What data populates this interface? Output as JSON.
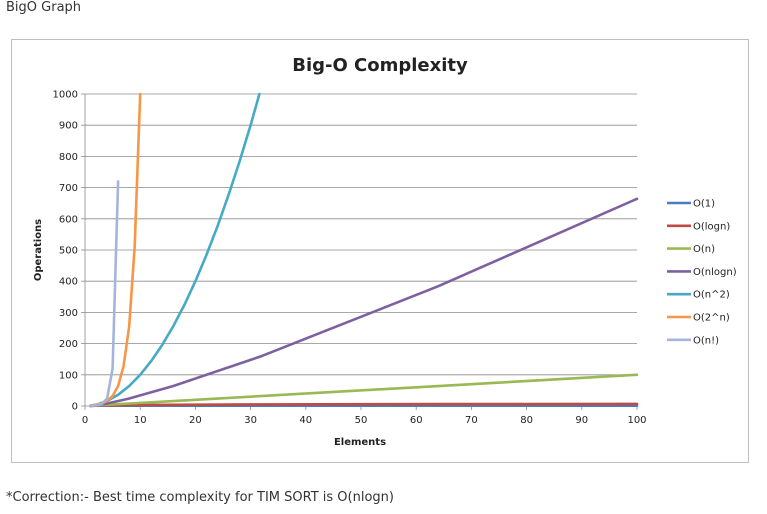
{
  "page": {
    "heading": "BigO Graph",
    "footnote": "*Correction:- Best time complexity for TIM SORT is O(nlogn)"
  },
  "chart_data": {
    "type": "line",
    "title": "Big-O Complexity",
    "xlabel": "Elements",
    "ylabel": "Operations",
    "xlim": [
      0,
      100
    ],
    "ylim": [
      0,
      1000
    ],
    "xticks": [
      0,
      10,
      20,
      30,
      40,
      50,
      60,
      70,
      80,
      90,
      100
    ],
    "yticks": [
      0,
      100,
      200,
      300,
      400,
      500,
      600,
      700,
      800,
      900,
      1000
    ],
    "grid": "horizontal",
    "legend_position": "right",
    "series": [
      {
        "name": "O(1)",
        "color": "#4a7ebb",
        "x": [
          1,
          100
        ],
        "y": [
          1,
          1
        ]
      },
      {
        "name": "O(logn)",
        "color": "#be4b48",
        "x": [
          1,
          2,
          4,
          8,
          16,
          32,
          64,
          100
        ],
        "y": [
          0,
          1,
          2,
          3,
          4,
          5,
          6,
          6.6
        ]
      },
      {
        "name": "O(n)",
        "color": "#98b954",
        "x": [
          1,
          100
        ],
        "y": [
          1,
          100
        ]
      },
      {
        "name": "O(nlogn)",
        "color": "#7d60a0",
        "x": [
          1,
          2,
          4,
          8,
          16,
          32,
          64,
          100
        ],
        "y": [
          0,
          2,
          8,
          24,
          64,
          160,
          384,
          664
        ]
      },
      {
        "name": "O(n^2)",
        "color": "#46aac5",
        "x": [
          1,
          2,
          4,
          6,
          8,
          10,
          12,
          14,
          16,
          18,
          20,
          22,
          24,
          26,
          28,
          30,
          31.6
        ],
        "y": [
          1,
          4,
          16,
          36,
          64,
          100,
          144,
          196,
          256,
          324,
          400,
          484,
          576,
          676,
          784,
          900,
          1000
        ]
      },
      {
        "name": "O(2^n)",
        "color": "#f79646",
        "x": [
          1,
          2,
          3,
          4,
          5,
          6,
          7,
          8,
          9,
          10
        ],
        "y": [
          2,
          4,
          8,
          16,
          32,
          64,
          128,
          256,
          512,
          1000
        ]
      },
      {
        "name": "O(n!)",
        "color": "#a5b5da",
        "x": [
          1,
          2,
          3,
          4,
          5,
          6
        ],
        "y": [
          1,
          2,
          6,
          24,
          120,
          720
        ]
      }
    ]
  }
}
